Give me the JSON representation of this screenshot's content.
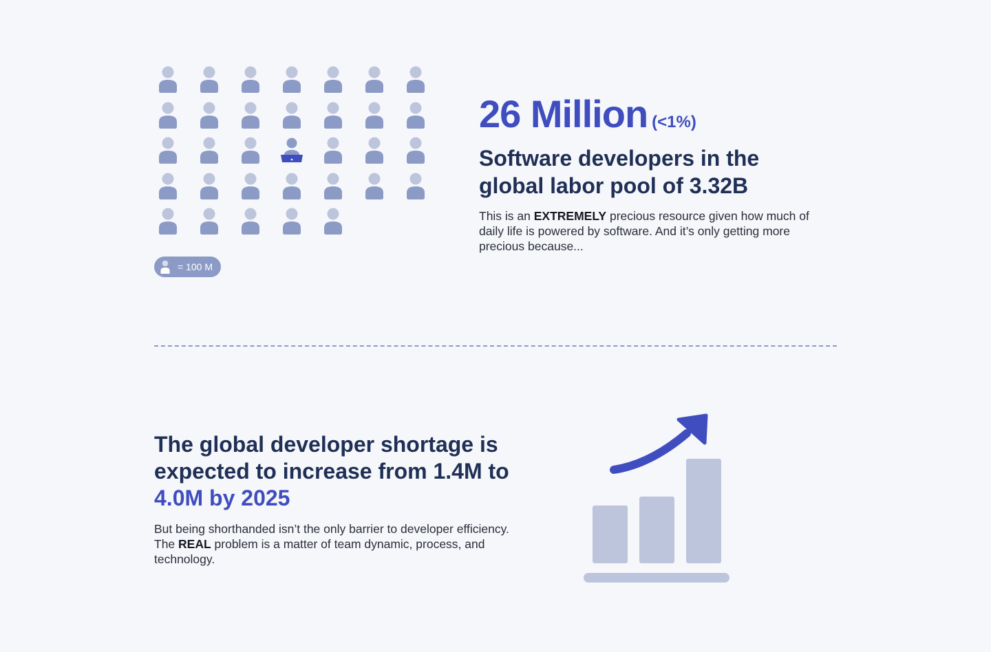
{
  "pictogram": {
    "rows": [
      7,
      7,
      7,
      7,
      5
    ],
    "highlighted": {
      "row": 2,
      "col": 3,
      "icon": "developer-laptop-icon"
    },
    "person_icon": "person-icon",
    "colors": {
      "head": "#bcc5dc",
      "body": "#8c9bc6",
      "highlight": "#3f4dbf"
    }
  },
  "legend": {
    "icon": "person-icon",
    "text": "= 100 M"
  },
  "stat": {
    "value": "26 Million",
    "percent": "(<1%)",
    "subtitle_line1": "Software developers in the",
    "subtitle_line2": "global  labor pool of 3.32B",
    "para_pre": "This is an ",
    "para_bold": "EXTREMELY",
    "para_post": " precious resource given how much of daily life is powered by software. And it’s only getting more precious because..."
  },
  "shortage": {
    "line1": "The global developer shortage is",
    "line2": "expected to increase from 1.4M to",
    "accent": "4.0M by 2025",
    "para_pre": "But being shorthanded isn’t the only barrier to developer efficiency. The ",
    "para_bold": "REAL",
    "para_post": " problem is a matter of team dynamic, process, and technology."
  },
  "growth_graphic": {
    "icon": "growth-chart-icon",
    "bar_levels": [
      0.55,
      0.64,
      1.0
    ],
    "colors": {
      "bars": "#bcc5dc",
      "arrow": "#3f4dbf"
    }
  },
  "colors": {
    "background": "#f6f7fb",
    "accent": "#3f4dbf",
    "heading": "#1f2f55",
    "muted": "#8c9bc6"
  }
}
